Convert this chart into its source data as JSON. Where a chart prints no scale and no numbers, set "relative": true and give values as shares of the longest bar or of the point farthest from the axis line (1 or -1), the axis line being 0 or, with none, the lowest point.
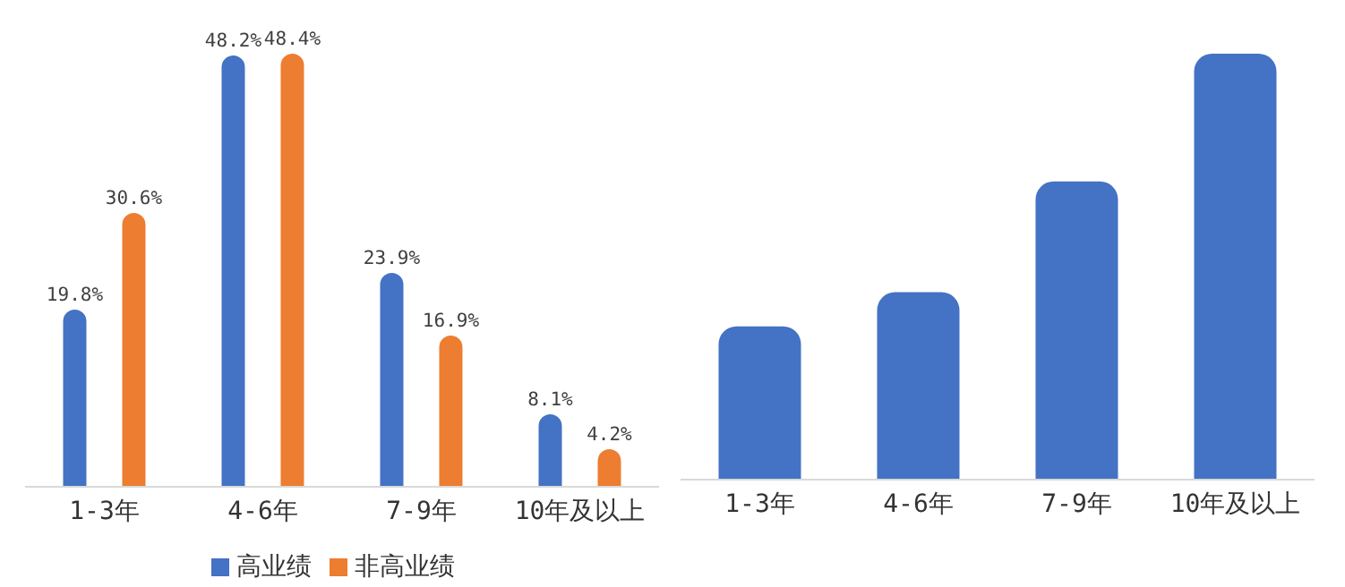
{
  "chart_data": [
    {
      "type": "bar",
      "categories": [
        "1-3年",
        "4-6年",
        "7-9年",
        "10年及以上"
      ],
      "legend": "bottom",
      "series": [
        {
          "name": "高业绩",
          "color": "#4472c4",
          "values": [
            19.8,
            48.2,
            23.9,
            8.1
          ],
          "value_labels": [
            "19.8%",
            "48.2%",
            "23.9%",
            "8.1%"
          ]
        },
        {
          "name": "非高业绩",
          "color": "#ed7d31",
          "values": [
            30.6,
            48.4,
            16.9,
            4.2
          ],
          "value_labels": [
            "30.6%",
            "48.4%",
            "16.9%",
            "4.2%"
          ]
        }
      ]
    },
    {
      "type": "bar",
      "relative": true,
      "categories": [
        "1-3年",
        "4-6年",
        "7-9年",
        "10年及以上"
      ],
      "color": "#4472c4",
      "values": [
        0.36,
        0.44,
        0.7,
        1
      ]
    }
  ]
}
